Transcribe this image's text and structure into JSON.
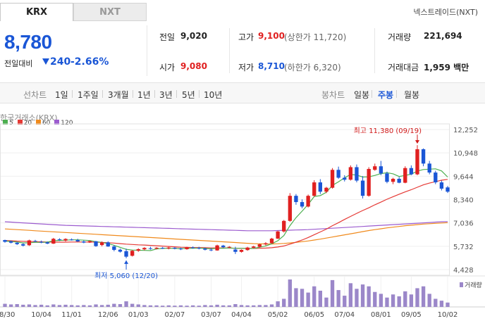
{
  "tabs": [
    {
      "label": "KRX"
    },
    {
      "label": "NXT"
    }
  ],
  "venue": "넥스트레이드(NXT)",
  "price": "8,780",
  "change": {
    "label": "전일대비",
    "value": "240",
    "percent": "-2.66%"
  },
  "stats": {
    "prev_close": {
      "label": "전일",
      "value": "9,020"
    },
    "open": {
      "label": "시가",
      "value": "9,080"
    },
    "high": {
      "label": "고가",
      "value": "9,100",
      "sub": "(상한가 11,720)"
    },
    "low": {
      "label": "저가",
      "value": "8,710",
      "sub": "(하한가 6,320)"
    },
    "volume": {
      "label": "거래량",
      "value": "221,694"
    },
    "amount": {
      "label": "거래대금",
      "value": "1,959 백만"
    }
  },
  "periods": {
    "line_label": "선차트",
    "line_items": [
      "1일",
      "1주일",
      "3개월",
      "1년",
      "3년",
      "5년",
      "10년"
    ],
    "candle_label": "봉차트",
    "candle_items": [
      "일봉",
      "주봉",
      "월봉"
    ],
    "selected": "주봉"
  },
  "colors": {
    "up": "#e02020",
    "down": "#1a56d6",
    "ma5": "#4caf50",
    "ma20": "#e53935",
    "ma60": "#f08a1c",
    "ma120": "#9c5ccf",
    "volume": "#9b87c9"
  },
  "chart_data": {
    "type": "candlestick",
    "source": "한국거래소(KRX)",
    "legend": [
      "5",
      "20",
      "60",
      "120"
    ],
    "y_ticks": [
      12252,
      10948,
      9644,
      8340,
      7036,
      5732,
      4428
    ],
    "ylim": [
      4428,
      12252
    ],
    "x_ticks": [
      "08/30",
      "10/04",
      "11/01",
      "12/06",
      "01/03",
      "02/07",
      "03/07",
      "04/04",
      "05/02",
      "06/05",
      "07/04",
      "08/01",
      "09/05",
      "10/02"
    ],
    "high_annotation": "최고 11,380 (09/19)",
    "low_annotation": "최저 5,060 (12/20)",
    "volume_label": "거래량",
    "candles": [
      [
        6080,
        6100,
        5930,
        5980
      ],
      [
        6010,
        6050,
        5890,
        5930
      ],
      [
        5930,
        5980,
        5800,
        5850
      ],
      [
        5850,
        5900,
        5720,
        5770
      ],
      [
        5790,
        6100,
        5750,
        6060
      ],
      [
        6030,
        6090,
        5970,
        6010
      ],
      [
        5980,
        6050,
        5900,
        5950
      ],
      [
        5950,
        6000,
        5850,
        5880
      ],
      [
        5880,
        6200,
        5860,
        6150
      ],
      [
        6120,
        6180,
        6030,
        6080
      ],
      [
        6050,
        6180,
        6000,
        6140
      ],
      [
        6110,
        6170,
        6050,
        6070
      ],
      [
        6080,
        6150,
        5980,
        6000
      ],
      [
        6000,
        6060,
        5900,
        5940
      ],
      [
        5940,
        6050,
        5920,
        6020
      ],
      [
        6010,
        6030,
        5700,
        5740
      ],
      [
        5800,
        6000,
        5730,
        5950
      ],
      [
        5950,
        6010,
        5700,
        5720
      ],
      [
        5720,
        5800,
        5450,
        5530
      ],
      [
        5540,
        5600,
        5380,
        5430
      ],
      [
        5460,
        5600,
        5060,
        5150
      ],
      [
        5200,
        5520,
        5160,
        5480
      ],
      [
        5480,
        5620,
        5420,
        5570
      ],
      [
        5560,
        5680,
        5500,
        5640
      ],
      [
        5620,
        5700,
        5540,
        5590
      ],
      [
        5600,
        5680,
        5560,
        5650
      ],
      [
        5640,
        5690,
        5580,
        5610
      ],
      [
        5610,
        5700,
        5560,
        5660
      ],
      [
        5650,
        5680,
        5560,
        5600
      ],
      [
        5600,
        5650,
        5520,
        5570
      ],
      [
        5570,
        5700,
        5540,
        5680
      ],
      [
        5670,
        5720,
        5600,
        5640
      ],
      [
        5640,
        5700,
        5560,
        5610
      ],
      [
        5600,
        5660,
        5500,
        5540
      ],
      [
        5540,
        5620,
        5460,
        5500
      ],
      [
        5500,
        5820,
        5480,
        5780
      ],
      [
        5770,
        5810,
        5640,
        5680
      ],
      [
        5680,
        5740,
        5620,
        5700
      ],
      [
        5550,
        5700,
        5300,
        5420
      ],
      [
        5420,
        5560,
        5380,
        5530
      ],
      [
        5520,
        5700,
        5480,
        5660
      ],
      [
        5650,
        5760,
        5600,
        5720
      ],
      [
        5700,
        5880,
        5660,
        5840
      ],
      [
        5840,
        5960,
        5780,
        5900
      ],
      [
        5900,
        6200,
        5880,
        6160
      ],
      [
        6160,
        6600,
        6140,
        6560
      ],
      [
        6560,
        7200,
        6500,
        7150
      ],
      [
        7150,
        8700,
        7100,
        8550
      ],
      [
        8550,
        8650,
        8050,
        8200
      ],
      [
        8200,
        8350,
        7850,
        7950
      ],
      [
        7950,
        8620,
        7900,
        8550
      ],
      [
        8550,
        9420,
        8500,
        9300
      ],
      [
        9300,
        9480,
        8650,
        8780
      ],
      [
        8780,
        9050,
        8700,
        9000
      ],
      [
        9000,
        10100,
        8950,
        10000
      ],
      [
        10000,
        10180,
        9500,
        9560
      ],
      [
        9560,
        9700,
        9350,
        9450
      ],
      [
        9450,
        10250,
        9400,
        10150
      ],
      [
        10150,
        10300,
        9300,
        9400
      ],
      [
        9400,
        9650,
        8400,
        8550
      ],
      [
        8550,
        10150,
        8500,
        10050
      ],
      [
        10000,
        10350,
        9950,
        10200
      ],
      [
        10200,
        10500,
        9700,
        9800
      ],
      [
        9800,
        9900,
        9250,
        9330
      ],
      [
        9330,
        9560,
        9200,
        9500
      ],
      [
        9500,
        9600,
        9250,
        9280
      ],
      [
        9280,
        10200,
        9250,
        10100
      ],
      [
        10100,
        10250,
        9700,
        9750
      ],
      [
        9750,
        11380,
        9700,
        11150
      ],
      [
        11150,
        11200,
        10200,
        10350
      ],
      [
        10350,
        10500,
        9750,
        9850
      ],
      [
        9850,
        9950,
        9200,
        9300
      ],
      [
        9300,
        9400,
        8850,
        8950
      ],
      [
        9020,
        9100,
        8710,
        8780
      ]
    ],
    "ma5": [
      6020,
      6000,
      5970,
      5920,
      5930,
      5950,
      5950,
      5960,
      6040,
      6060,
      6070,
      6090,
      6090,
      6070,
      6050,
      5990,
      5950,
      5880,
      5790,
      5670,
      5560,
      5520,
      5510,
      5500,
      5490,
      5580,
      5610,
      5620,
      5610,
      5600,
      5610,
      5620,
      5630,
      5610,
      5590,
      5620,
      5620,
      5640,
      5620,
      5620,
      5600,
      5610,
      5680,
      5750,
      5870,
      6040,
      6330,
      6880,
      7330,
      7690,
      8070,
      8510,
      8560,
      8750,
      9130,
      9330,
      9560,
      9740,
      9710,
      9600,
      9610,
      9690,
      9790,
      9840,
      9780,
      9630,
      9690,
      9760,
      9930,
      10020,
      10040,
      10060,
      9940,
      9600
    ],
    "ma20": [
      6050,
      6040,
      6020,
      6010,
      6000,
      5990,
      5980,
      5970,
      5960,
      5960,
      5960,
      5970,
      5970,
      5970,
      5970,
      5960,
      5950,
      5930,
      5910,
      5880,
      5850,
      5830,
      5810,
      5800,
      5780,
      5760,
      5740,
      5720,
      5700,
      5680,
      5670,
      5660,
      5660,
      5650,
      5640,
      5640,
      5640,
      5630,
      5620,
      5620,
      5610,
      5610,
      5620,
      5630,
      5650,
      5690,
      5750,
      5850,
      5960,
      6080,
      6220,
      6380,
      6530,
      6690,
      6880,
      7050,
      7230,
      7400,
      7570,
      7730,
      7880,
      8050,
      8200,
      8360,
      8500,
      8640,
      8770,
      8890,
      9030,
      9160,
      9260,
      9340,
      9420,
      9470
    ],
    "ma60": [
      6700,
      6680,
      6660,
      6640,
      6620,
      6600,
      6580,
      6560,
      6540,
      6520,
      6500,
      6480,
      6460,
      6440,
      6420,
      6400,
      6380,
      6360,
      6340,
      6320,
      6300,
      6280,
      6260,
      6240,
      6220,
      6200,
      6180,
      6160,
      6140,
      6120,
      6100,
      6080,
      6060,
      6040,
      6020,
      6000,
      5980,
      5960,
      5940,
      5920,
      5900,
      5880,
      5870,
      5860,
      5860,
      5870,
      5890,
      5920,
      5950,
      5990,
      6030,
      6080,
      6130,
      6190,
      6250,
      6310,
      6370,
      6430,
      6490,
      6550,
      6610,
      6660,
      6710,
      6760,
      6800,
      6840,
      6880,
      6910,
      6940,
      6970,
      6990,
      7010,
      7030,
      7050
    ],
    "ma120": [
      7100,
      7080,
      7060,
      7040,
      7020,
      7000,
      6980,
      6960,
      6940,
      6920,
      6900,
      6890,
      6880,
      6870,
      6860,
      6850,
      6840,
      6830,
      6820,
      6810,
      6800,
      6790,
      6780,
      6770,
      6760,
      6750,
      6740,
      6730,
      6720,
      6710,
      6700,
      6690,
      6680,
      6670,
      6660,
      6650,
      6640,
      6630,
      6620,
      6610,
      6600,
      6600,
      6600,
      6600,
      6600,
      6610,
      6620,
      6630,
      6640,
      6650,
      6660,
      6680,
      6700,
      6720,
      6740,
      6760,
      6780,
      6800,
      6820,
      6840,
      6860,
      6880,
      6900,
      6920,
      6940,
      6960,
      6980,
      7000,
      7020,
      7040,
      7060,
      7080,
      7100,
      7110
    ],
    "volume": [
      0.1,
      0.08,
      0.09,
      0.07,
      0.08,
      0.06,
      0.07,
      0.05,
      0.08,
      0.06,
      0.07,
      0.06,
      0.05,
      0.06,
      0.05,
      0.08,
      0.06,
      0.07,
      0.1,
      0.09,
      0.18,
      0.1,
      0.08,
      0.06,
      0.05,
      0.05,
      0.04,
      0.05,
      0.04,
      0.05,
      0.04,
      0.05,
      0.04,
      0.06,
      0.05,
      0.07,
      0.05,
      0.05,
      0.09,
      0.06,
      0.05,
      0.05,
      0.06,
      0.06,
      0.08,
      0.18,
      0.26,
      0.88,
      0.6,
      0.58,
      0.46,
      0.66,
      0.52,
      0.3,
      0.86,
      0.54,
      0.36,
      0.76,
      0.58,
      0.72,
      0.66,
      0.48,
      0.42,
      0.3,
      0.4,
      0.34,
      0.5,
      0.4,
      0.6,
      0.66,
      0.42,
      0.26,
      0.2,
      0.14
    ]
  }
}
